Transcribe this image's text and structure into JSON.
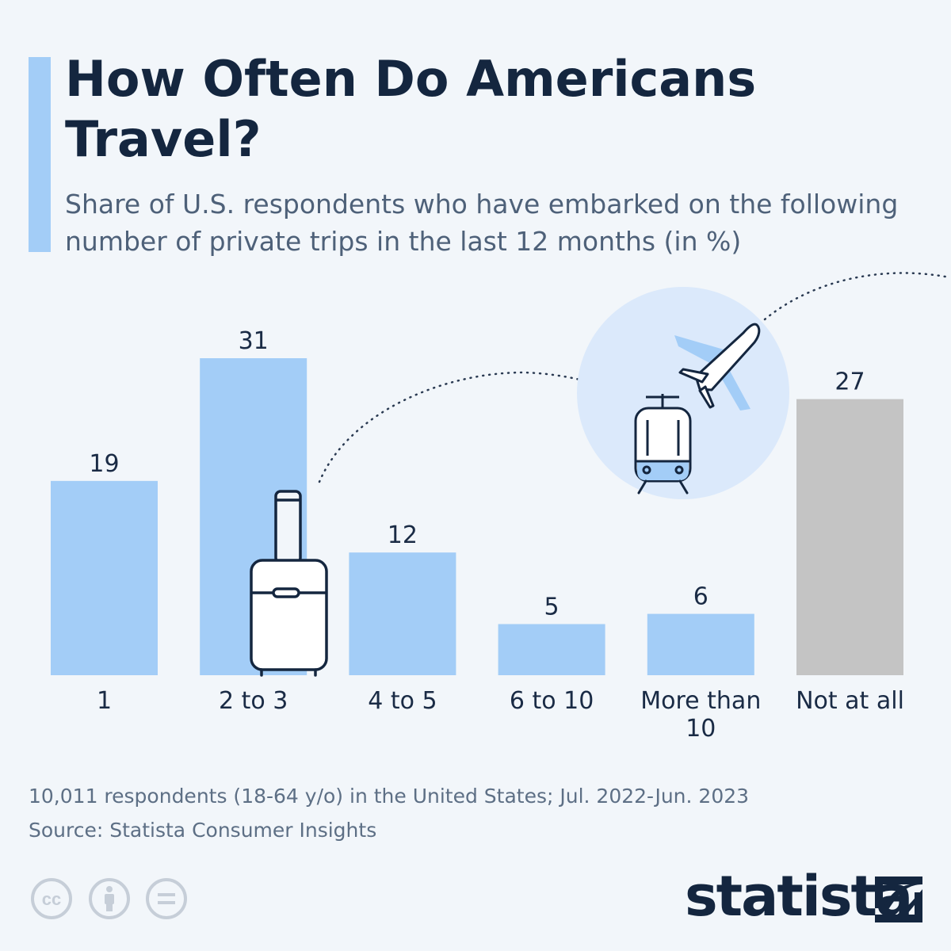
{
  "title": "How Often Do Americans Travel?",
  "subtitle": "Share of U.S. respondents who have embarked on the following number of private trips in the last 12 months (in %)",
  "footnote": {
    "line1": "10,011 respondents (18-64 y/o) in the United States; Jul. 2022-Jun. 2023",
    "line2": "Source: Statista Consumer Insights"
  },
  "brand": "statista",
  "colors": {
    "bar": "#a3cdf7",
    "bar_highlight": "#c4c4c4",
    "background": "#f2f6fa",
    "accent": "#a3cdf7"
  },
  "icons": [
    "suitcase-icon",
    "train-icon",
    "airplane-icon",
    "cc-icon",
    "by-icon",
    "nd-icon",
    "statista-logo-icon"
  ],
  "chart_data": {
    "type": "bar",
    "categories": [
      "1",
      "2 to 3",
      "4 to 5",
      "6 to 10",
      "More than 10",
      "Not at all"
    ],
    "values": [
      19,
      31,
      12,
      5,
      6,
      27
    ],
    "highlight_category": "Not at all",
    "title": "How Often Do Americans Travel?",
    "xlabel": "",
    "ylabel": "",
    "ylim": [
      0,
      31
    ],
    "grid": false,
    "legend": "none"
  }
}
